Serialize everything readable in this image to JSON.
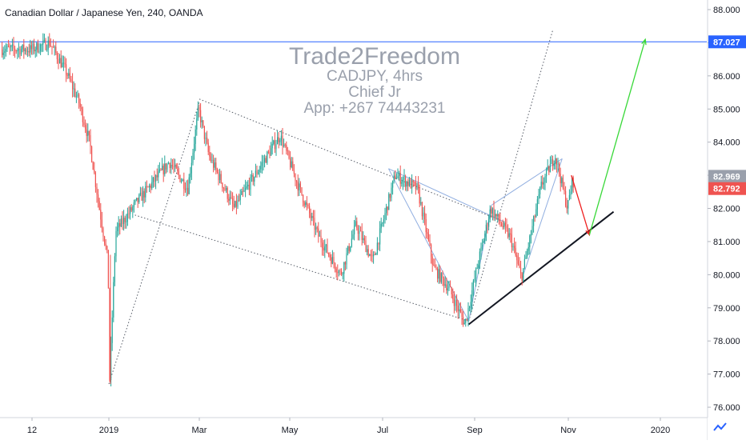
{
  "header": {
    "symbol_title": "Canadian Dollar / Japanese Yen, 240, OANDA"
  },
  "watermark": {
    "brand": "Trade2Freedom",
    "lines": [
      "CADJPY, 4hrs",
      "Chief Jr",
      "App: +267 74443231"
    ]
  },
  "colors": {
    "up": "#26a69a",
    "down": "#ef5350",
    "price_tag": "#ef5350",
    "horizontal_line": "#2962ff",
    "wedge_lines": "#90aee0",
    "support_line": "#131722",
    "target_arrow": "#38d838",
    "drop_arrow": "#ef2020"
  },
  "chart_data": {
    "type": "candlestick",
    "title": "Canadian Dollar / Japanese Yen, 240, OANDA",
    "xlabel": "",
    "ylabel": "",
    "x_tick_labels": [
      "12",
      "2019",
      "Mar",
      "May",
      "Jul",
      "Sep",
      "Nov",
      "2020"
    ],
    "y_tick_labels": [
      "76.000",
      "77.000",
      "78.000",
      "79.000",
      "80.000",
      "81.000",
      "82.000",
      "83.000",
      "84.000",
      "85.000",
      "86.000",
      "87.000",
      "88.000"
    ],
    "ylim": [
      75.7,
      88.3
    ],
    "grid": false,
    "current_price": "82.792",
    "hidden_price": "82.969",
    "horizontal_level": "87.027",
    "swing_points": [
      {
        "date": "2018-11-12",
        "close": 86.8
      },
      {
        "date": "2018-11-24",
        "close": 87.0
      },
      {
        "date": "2018-12-05",
        "close": 86.1
      },
      {
        "date": "2018-12-13",
        "close": 85.2
      },
      {
        "date": "2018-12-20",
        "close": 84.0
      },
      {
        "date": "2018-12-26",
        "close": 82.1
      },
      {
        "date": "2019-01-01",
        "close": 80.4
      },
      {
        "date": "2019-01-02",
        "close": 76.8
      },
      {
        "date": "2019-01-06",
        "close": 81.3
      },
      {
        "date": "2019-01-20",
        "close": 82.2
      },
      {
        "date": "2019-02-10",
        "close": 83.4
      },
      {
        "date": "2019-02-22",
        "close": 82.6
      },
      {
        "date": "2019-03-01",
        "close": 85.0
      },
      {
        "date": "2019-03-08",
        "close": 83.6
      },
      {
        "date": "2019-03-25",
        "close": 82.0
      },
      {
        "date": "2019-04-15",
        "close": 83.5
      },
      {
        "date": "2019-04-25",
        "close": 84.2
      },
      {
        "date": "2019-05-07",
        "close": 82.7
      },
      {
        "date": "2019-05-20",
        "close": 81.2
      },
      {
        "date": "2019-06-04",
        "close": 80.0
      },
      {
        "date": "2019-06-14",
        "close": 81.5
      },
      {
        "date": "2019-06-25",
        "close": 80.4
      },
      {
        "date": "2019-07-10",
        "close": 83.0
      },
      {
        "date": "2019-07-25",
        "close": 82.6
      },
      {
        "date": "2019-08-05",
        "close": 80.2
      },
      {
        "date": "2019-08-15",
        "close": 79.6
      },
      {
        "date": "2019-08-26",
        "close": 78.5
      },
      {
        "date": "2019-09-03",
        "close": 80.2
      },
      {
        "date": "2019-09-12",
        "close": 82.0
      },
      {
        "date": "2019-09-25",
        "close": 81.1
      },
      {
        "date": "2019-10-02",
        "close": 79.9
      },
      {
        "date": "2019-10-15",
        "close": 82.7
      },
      {
        "date": "2019-10-24",
        "close": 83.6
      },
      {
        "date": "2019-11-01",
        "close": 82.0
      },
      {
        "date": "2019-11-04",
        "close": 82.8
      }
    ],
    "drawings": {
      "upper_channel": [
        {
          "date": "2019-03-01",
          "price": 85.3
        },
        {
          "date": "2019-09-20",
          "price": 81.6
        }
      ],
      "lower_channel": [
        {
          "date": "2019-01-18",
          "price": 81.8
        },
        {
          "date": "2019-08-28",
          "price": 78.6
        }
      ],
      "trend_line": [
        {
          "date": "2019-01-01",
          "price": 76.7
        },
        {
          "date": "2019-03-01",
          "price": 85.2
        }
      ],
      "breakout_line": [
        {
          "date": "2019-08-28",
          "price": 78.6
        },
        {
          "date": "2019-10-22",
          "price": 87.4
        }
      ],
      "support_line": [
        {
          "date": "2019-08-28",
          "price": 78.5
        },
        {
          "date": "2019-12-01",
          "price": 81.9
        }
      ],
      "wedge_upper": [
        {
          "date": "2019-07-05",
          "price": 83.2
        },
        {
          "date": "2019-09-20",
          "price": 81.6
        }
      ],
      "wedge_lines": [
        [
          {
            "date": "2019-07-05",
            "price": 83.2
          },
          {
            "date": "2019-08-28",
            "price": 78.6
          }
        ],
        [
          {
            "date": "2019-08-28",
            "price": 78.6
          },
          {
            "date": "2019-09-12",
            "price": 82.1
          }
        ],
        [
          {
            "date": "2019-09-12",
            "price": 82.1
          },
          {
            "date": "2019-10-28",
            "price": 83.5
          }
        ],
        [
          {
            "date": "2019-10-02",
            "price": 79.9
          },
          {
            "date": "2019-10-28",
            "price": 83.5
          }
        ]
      ],
      "drop_arrow": [
        {
          "date": "2019-11-03",
          "price": 83.0
        },
        {
          "date": "2019-11-15",
          "price": 81.2
        }
      ],
      "target_arrow": [
        {
          "date": "2019-11-15",
          "price": 81.2
        },
        {
          "date": "2019-12-22",
          "price": 87.1
        }
      ]
    }
  }
}
